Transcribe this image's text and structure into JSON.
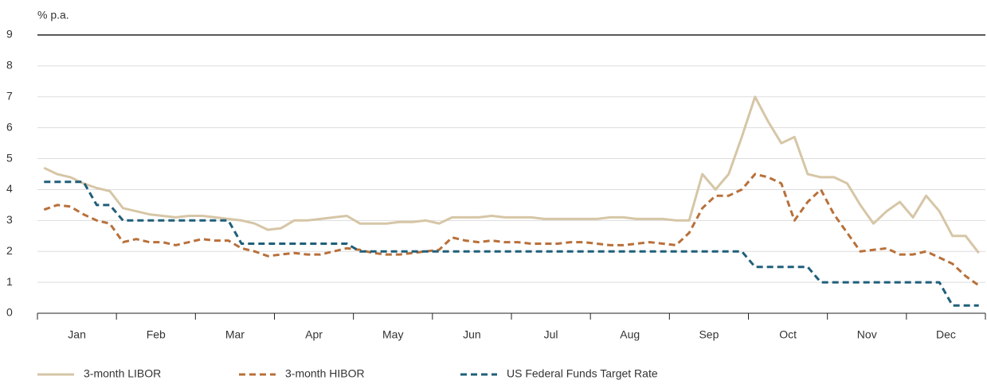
{
  "chart_data": {
    "type": "line",
    "y_label": "% p.a.",
    "categories": [
      null,
      null,
      null,
      "Jan",
      null,
      null,
      null,
      null,
      null,
      "Feb",
      null,
      null,
      null,
      null,
      null,
      "Mar",
      null,
      null,
      null,
      null,
      null,
      "Apr",
      null,
      null,
      null,
      null,
      null,
      "May",
      null,
      null,
      null,
      null,
      null,
      "Jun",
      null,
      null,
      null,
      null,
      null,
      "Jul",
      null,
      null,
      null,
      null,
      null,
      "Aug",
      null,
      null,
      null,
      null,
      null,
      "Sep",
      null,
      null,
      null,
      null,
      null,
      "Oct",
      null,
      null,
      null,
      null,
      null,
      "Nov",
      null,
      null,
      null,
      null,
      null,
      "Dec",
      null,
      null
    ],
    "series": [
      {
        "name": "3-month LIBOR",
        "color": "#d6c6a6",
        "dash": false,
        "values": [
          4.7,
          4.5,
          4.4,
          4.2,
          4.05,
          3.95,
          3.4,
          3.3,
          3.2,
          3.15,
          3.1,
          3.15,
          3.15,
          3.1,
          3.05,
          3.0,
          2.9,
          2.7,
          2.75,
          3.0,
          3.0,
          3.05,
          3.1,
          3.15,
          2.9,
          2.9,
          2.9,
          2.95,
          2.95,
          3.0,
          2.9,
          3.1,
          3.1,
          3.1,
          3.15,
          3.1,
          3.1,
          3.1,
          3.05,
          3.05,
          3.05,
          3.05,
          3.05,
          3.1,
          3.1,
          3.05,
          3.05,
          3.05,
          3.0,
          3.0,
          4.5,
          4.0,
          4.5,
          5.7,
          7.0,
          6.2,
          5.5,
          5.7,
          4.5,
          4.4,
          4.4,
          4.2,
          3.5,
          2.9,
          3.3,
          3.6,
          3.1,
          3.8,
          3.3,
          2.5,
          2.5,
          1.95
        ]
      },
      {
        "name": "3-month HIBOR",
        "color": "#b8703a",
        "dash": true,
        "values": [
          3.35,
          3.5,
          3.45,
          3.2,
          3.0,
          2.9,
          2.3,
          2.4,
          2.3,
          2.3,
          2.2,
          2.3,
          2.4,
          2.35,
          2.35,
          2.1,
          2.0,
          1.85,
          1.9,
          1.95,
          1.9,
          1.9,
          2.0,
          2.1,
          2.05,
          1.95,
          1.9,
          1.9,
          1.95,
          2.0,
          2.05,
          2.45,
          2.35,
          2.3,
          2.35,
          2.3,
          2.3,
          2.25,
          2.25,
          2.25,
          2.3,
          2.3,
          2.25,
          2.2,
          2.2,
          2.25,
          2.3,
          2.25,
          2.2,
          2.6,
          3.4,
          3.8,
          3.8,
          4.0,
          4.5,
          4.4,
          4.2,
          3.0,
          3.6,
          4.0,
          3.2,
          2.6,
          2.0,
          2.05,
          2.1,
          1.9,
          1.9,
          2.0,
          1.8,
          1.6,
          1.2,
          0.9
        ]
      },
      {
        "name": "US Federal Funds Target Rate",
        "color": "#1f5f7a",
        "dash": true,
        "values": [
          4.25,
          4.25,
          4.25,
          4.25,
          3.5,
          3.5,
          3,
          3,
          3,
          3,
          3,
          3,
          3,
          3,
          3,
          2.25,
          2.25,
          2.25,
          2.25,
          2.25,
          2.25,
          2.25,
          2.25,
          2.25,
          2,
          2,
          2,
          2,
          2,
          2,
          2,
          2,
          2,
          2,
          2,
          2,
          2,
          2,
          2,
          2,
          2,
          2,
          2,
          2,
          2,
          2,
          2,
          2,
          2,
          2,
          2,
          2,
          2,
          2,
          1.5,
          1.5,
          1.5,
          1.5,
          1.5,
          1,
          1,
          1,
          1,
          1,
          1,
          1,
          1,
          1,
          1,
          0.25,
          0.25,
          0.25
        ]
      }
    ],
    "ylim": [
      0,
      9
    ],
    "yticks": [
      0,
      1,
      2,
      3,
      4,
      5,
      6,
      7,
      8,
      9
    ],
    "grid": true
  }
}
